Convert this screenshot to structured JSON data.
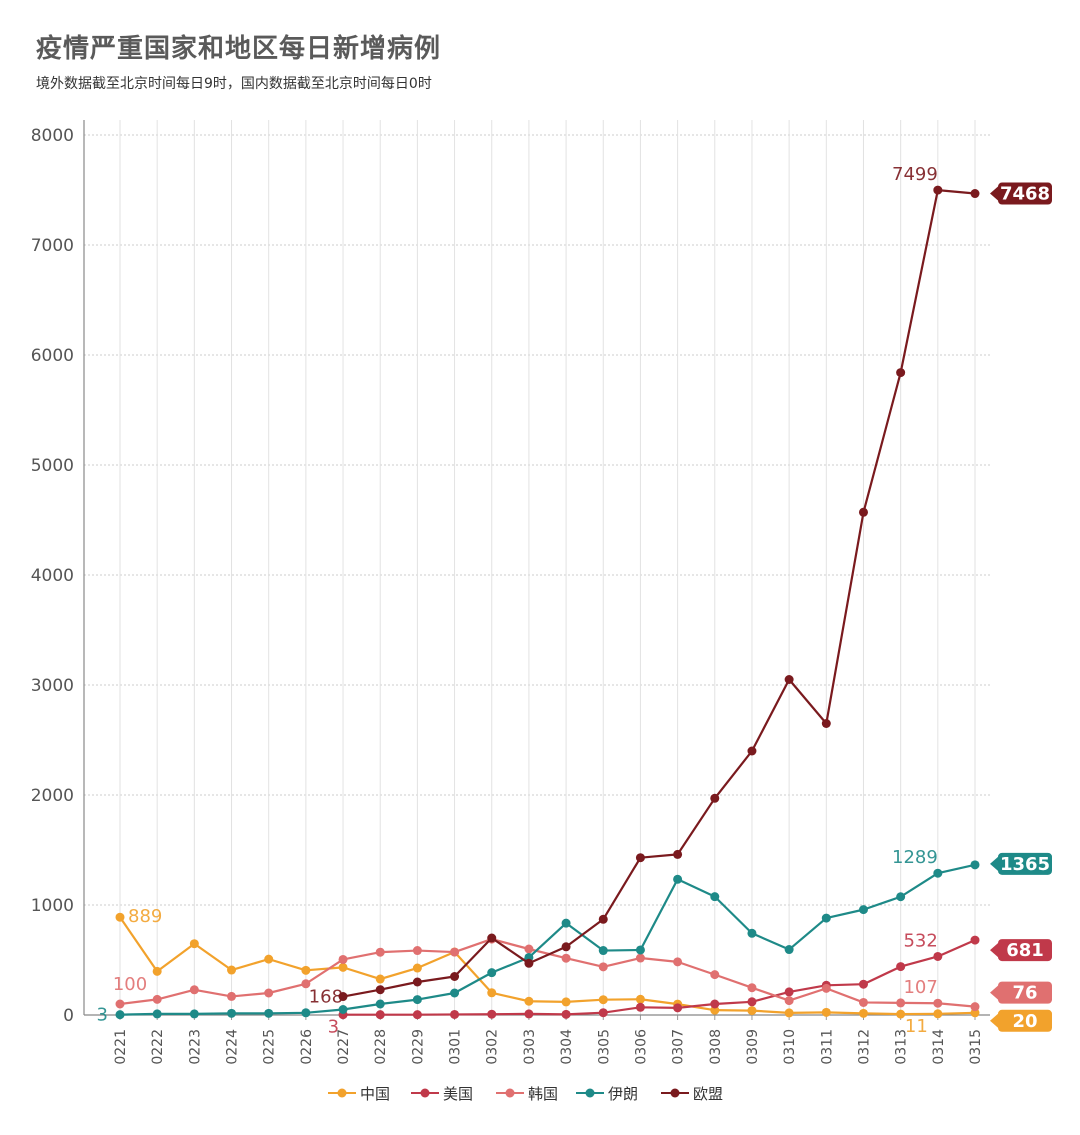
{
  "title": "疫情严重国家和地区每日新增病例",
  "subtitle": "境外数据截至北京时间每日9时，国内数据截至北京时间每日0时",
  "chart_data": {
    "type": "line",
    "categories": [
      "0221",
      "0222",
      "0223",
      "0224",
      "0225",
      "0226",
      "0227",
      "0228",
      "0229",
      "0301",
      "0302",
      "0303",
      "0304",
      "0305",
      "0306",
      "0307",
      "0308",
      "0309",
      "0310",
      "0311",
      "0312",
      "0313",
      "0314",
      "0315"
    ],
    "ylim": [
      0,
      8000
    ],
    "yticks": [
      0,
      1000,
      2000,
      3000,
      4000,
      5000,
      6000,
      7000,
      8000
    ],
    "grid": true,
    "legend_position": "bottom",
    "series": [
      {
        "name": "中国",
        "color": "#f2a22c",
        "values": [
          889,
          397,
          648,
          409,
          508,
          406,
          433,
          327,
          427,
          573,
          202,
          125,
          119,
          139,
          143,
          99,
          44,
          40,
          19,
          24,
          15,
          8,
          11,
          20
        ]
      },
      {
        "name": "美国",
        "color": "#c0394a",
        "values": [
          null,
          null,
          null,
          null,
          null,
          null,
          3,
          3,
          3,
          5,
          7,
          10,
          6,
          21,
          70,
          65,
          100,
          120,
          210,
          270,
          280,
          440,
          532,
          681
        ]
      },
      {
        "name": "韩国",
        "color": "#e07070",
        "values": [
          100,
          142,
          229,
          169,
          200,
          284,
          505,
          571,
          586,
          572,
          690,
          600,
          516,
          438,
          518,
          483,
          367,
          248,
          131,
          242,
          114,
          110,
          107,
          76
        ]
      },
      {
        "name": "伊朗",
        "color": "#1e8a88",
        "values": [
          3,
          10,
          10,
          15,
          15,
          20,
          50,
          100,
          140,
          200,
          385,
          523,
          835,
          586,
          591,
          1234,
          1076,
          743,
          595,
          881,
          958,
          1075,
          1289,
          1365
        ]
      },
      {
        "name": "欧盟",
        "color": "#7a1a1e",
        "values": [
          null,
          null,
          null,
          null,
          null,
          null,
          168,
          230,
          300,
          350,
          700,
          470,
          620,
          870,
          1430,
          1460,
          1970,
          2400,
          3050,
          2650,
          4570,
          5840,
          7499,
          7468
        ]
      }
    ],
    "point_labels": [
      {
        "series": "中国",
        "category": "0221",
        "text": "889"
      },
      {
        "series": "伊朗",
        "category": "0221",
        "text": "3"
      },
      {
        "series": "韩国",
        "category": "0221",
        "text": "100"
      },
      {
        "series": "欧盟",
        "category": "0227",
        "text": "168"
      },
      {
        "series": "美国",
        "category": "0227",
        "text": "3"
      },
      {
        "series": "欧盟",
        "category": "0314",
        "text": "7499"
      },
      {
        "series": "伊朗",
        "category": "0314",
        "text": "1289"
      },
      {
        "series": "美国",
        "category": "0314",
        "text": "532"
      },
      {
        "series": "韩国",
        "category": "0314",
        "text": "107"
      },
      {
        "series": "中国",
        "category": "0314",
        "text": "11"
      }
    ],
    "end_badges": [
      {
        "series": "欧盟",
        "text": "7468"
      },
      {
        "series": "伊朗",
        "text": "1365"
      },
      {
        "series": "美国",
        "text": "681"
      },
      {
        "series": "韩国",
        "text": "76"
      },
      {
        "series": "中国",
        "text": "20"
      }
    ]
  }
}
